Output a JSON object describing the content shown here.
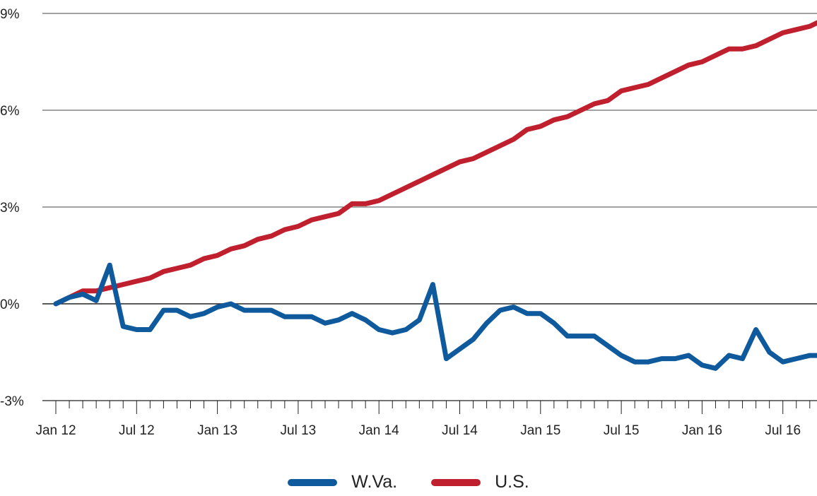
{
  "chart_data": {
    "type": "line",
    "y_ticks": [
      "9%",
      "6%",
      "3%",
      "0%",
      "-3%"
    ],
    "y_tick_values": [
      9,
      6,
      3,
      0,
      -3
    ],
    "ylim": [
      -3,
      9
    ],
    "x_tick_labels": [
      "Jan 12",
      "Jul 12",
      "Jan 13",
      "Jul 13",
      "Jan 14",
      "Jul 14",
      "Jan 15",
      "Jul 15",
      "Jan 16",
      "Jul 16"
    ],
    "x_start": "Jan 12",
    "x_end": "Oct 16",
    "grid": "horizontal",
    "legend_position": "bottom-center",
    "series": [
      {
        "name": "W.Va.",
        "color": "#0E5A9C",
        "values": [
          0.0,
          0.2,
          0.3,
          0.1,
          1.2,
          -0.7,
          -0.8,
          -0.8,
          -0.2,
          -0.2,
          -0.4,
          -0.3,
          -0.1,
          0.0,
          -0.2,
          -0.2,
          -0.2,
          -0.4,
          -0.4,
          -0.4,
          -0.6,
          -0.5,
          -0.3,
          -0.5,
          -0.8,
          -0.9,
          -0.8,
          -0.5,
          0.6,
          -1.7,
          -1.4,
          -1.1,
          -0.6,
          -0.2,
          -0.1,
          -0.3,
          -0.3,
          -0.6,
          -1.0,
          -1.0,
          -1.0,
          -1.3,
          -1.6,
          -1.8,
          -1.8,
          -1.7,
          -1.7,
          -1.6,
          -1.9,
          -2.0,
          -1.6,
          -1.7,
          -0.8,
          -1.5,
          -1.8,
          -1.7,
          -1.6,
          -1.6
        ]
      },
      {
        "name": "U.S.",
        "color": "#C0202E",
        "values": [
          0.0,
          0.2,
          0.4,
          0.4,
          0.5,
          0.6,
          0.7,
          0.8,
          1.0,
          1.1,
          1.2,
          1.4,
          1.5,
          1.7,
          1.8,
          2.0,
          2.1,
          2.3,
          2.4,
          2.6,
          2.7,
          2.8,
          3.1,
          3.1,
          3.2,
          3.4,
          3.6,
          3.8,
          4.0,
          4.2,
          4.4,
          4.5,
          4.7,
          4.9,
          5.1,
          5.4,
          5.5,
          5.7,
          5.8,
          6.0,
          6.2,
          6.3,
          6.6,
          6.7,
          6.8,
          7.0,
          7.2,
          7.4,
          7.5,
          7.7,
          7.9,
          7.9,
          8.0,
          8.2,
          8.4,
          8.5,
          8.6,
          8.8
        ]
      }
    ]
  }
}
